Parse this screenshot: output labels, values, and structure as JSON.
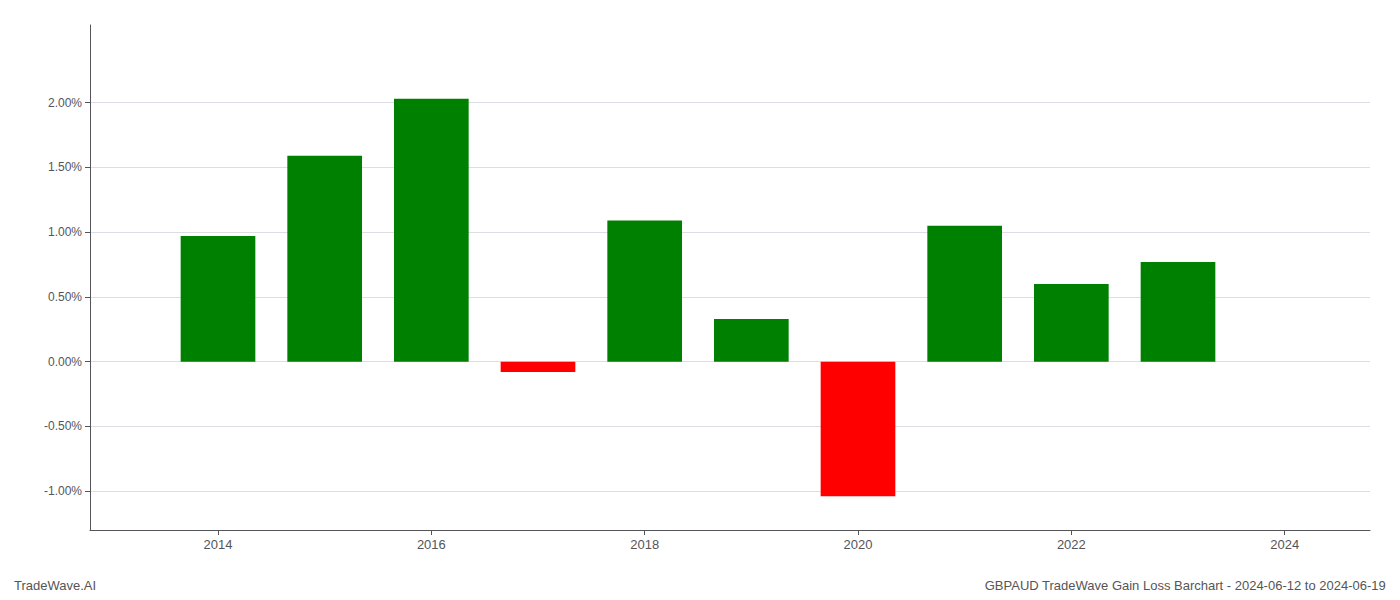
{
  "chart_data": {
    "type": "bar",
    "x": [
      2014,
      2015,
      2016,
      2017,
      2018,
      2019,
      2020,
      2021,
      2022,
      2023
    ],
    "values": [
      0.0097,
      0.0159,
      0.0203,
      -0.0008,
      0.0109,
      0.0033,
      -0.0104,
      0.0105,
      0.006,
      0.0077
    ],
    "colors": [
      "#008000",
      "#008000",
      "#008000",
      "#ff0000",
      "#008000",
      "#008000",
      "#ff0000",
      "#008000",
      "#008000",
      "#008000"
    ],
    "xlim": [
      2012.8,
      2024.8
    ],
    "xticks": [
      2014,
      2016,
      2018,
      2020,
      2022,
      2024
    ],
    "ylim": [
      -0.013,
      0.026
    ],
    "yticks": [
      {
        "value": -0.01,
        "label": "-1.00%"
      },
      {
        "value": -0.005,
        "label": "-0.50%"
      },
      {
        "value": 0.0,
        "label": "0.00%"
      },
      {
        "value": 0.005,
        "label": "0.50%"
      },
      {
        "value": 0.01,
        "label": "1.00%"
      },
      {
        "value": 0.015,
        "label": "1.50%"
      },
      {
        "value": 0.02,
        "label": "2.00%"
      }
    ],
    "grid": true,
    "annotations": [
      "TradeWave.AI",
      "GBPAUD TradeWave Gain Loss Barchart - 2024-06-12 to 2024-06-19"
    ]
  }
}
